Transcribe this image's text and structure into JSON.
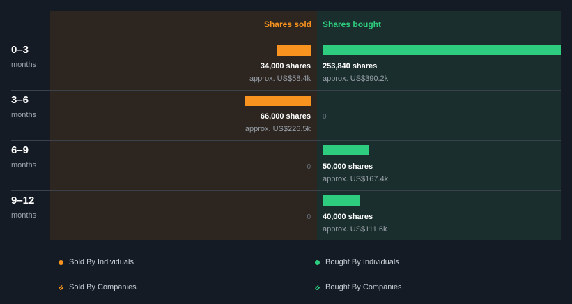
{
  "chart_data": {
    "type": "bar",
    "columns": {
      "sold": "Shares sold",
      "bought": "Shares bought"
    },
    "periods": [
      {
        "label": "0–3",
        "unit": "months",
        "sold": {
          "shares": 34000,
          "shares_label": "34,000 shares",
          "value_label": "approx. US$58.4k"
        },
        "bought": {
          "shares": 253840,
          "shares_label": "253,840 shares",
          "value_label": "approx. US$390.2k"
        }
      },
      {
        "label": "3–6",
        "unit": "months",
        "sold": {
          "shares": 66000,
          "shares_label": "66,000 shares",
          "value_label": "approx. US$226.5k"
        },
        "bought": {
          "shares": 0,
          "zero_label": "0"
        }
      },
      {
        "label": "6–9",
        "unit": "months",
        "sold": {
          "shares": 0,
          "zero_label": "0"
        },
        "bought": {
          "shares": 50000,
          "shares_label": "50,000 shares",
          "value_label": "approx. US$167.4k"
        }
      },
      {
        "label": "9–12",
        "unit": "months",
        "sold": {
          "shares": 0,
          "zero_label": "0"
        },
        "bought": {
          "shares": 40000,
          "shares_label": "40,000 shares",
          "value_label": "approx. US$111.6k"
        }
      }
    ],
    "legend": [
      {
        "label": "Sold By Individuals",
        "color": "#f7931e",
        "style": "dot"
      },
      {
        "label": "Bought By Individuals",
        "color": "#2ecc7f",
        "style": "dot"
      },
      {
        "label": "Sold By Companies",
        "color": "#f7931e",
        "style": "hatch"
      },
      {
        "label": "Bought By Companies",
        "color": "#2ecc7f",
        "style": "hatch"
      }
    ],
    "colors": {
      "sold": "#f7931e",
      "bought": "#2ecc7f",
      "sold_bg": "#2c2520",
      "bought_bg": "#1a2f2d",
      "header_sold": "#f7931e",
      "header_bought": "#2ecc7f"
    }
  }
}
